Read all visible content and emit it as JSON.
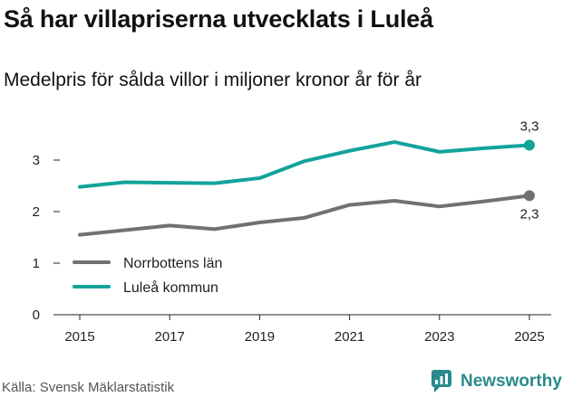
{
  "header": {
    "title": "Så har villapriserna utvecklats i Luleå",
    "subtitle": "Medelpris för sålda villor i miljoner kronor år för år"
  },
  "footer": {
    "source": "Källa: Svensk Mäklarstatistik",
    "brand": "Newsworthy"
  },
  "colors": {
    "norrbotten": "#717075",
    "lulea": "#12a39b",
    "axis": "#222222",
    "brand": "#2a8a8c"
  },
  "chart_data": {
    "type": "line",
    "title": "Så har villapriserna utvecklats i Luleå",
    "subtitle": "Medelpris för sålda villor i miljoner kronor år för år",
    "xlabel": "",
    "ylabel": "",
    "x": [
      2015,
      2016,
      2017,
      2018,
      2019,
      2020,
      2021,
      2022,
      2023,
      2024,
      2025
    ],
    "xticks": [
      2015,
      2017,
      2019,
      2021,
      2023,
      2025
    ],
    "xtick_labels": [
      "2015",
      "2017",
      "2019",
      "2021",
      "2023",
      "2025"
    ],
    "yticks": [
      0,
      1,
      2,
      3
    ],
    "ytick_labels": [
      "0",
      "1",
      "2",
      "3"
    ],
    "xlim": [
      2015,
      2025
    ],
    "ylim": [
      0,
      3.5
    ],
    "grid": false,
    "legend_position": "bottom-left",
    "series": [
      {
        "name": "Norrbottens län",
        "key": "norrbotten",
        "values": [
          1.55,
          1.64,
          1.73,
          1.66,
          1.79,
          1.88,
          2.13,
          2.21,
          2.1,
          2.2,
          2.31
        ],
        "end_label": "2,3"
      },
      {
        "name": "Luleå kommun",
        "key": "lulea",
        "values": [
          2.48,
          2.57,
          2.56,
          2.55,
          2.65,
          2.98,
          3.18,
          3.35,
          3.16,
          3.23,
          3.29
        ],
        "end_label": "3,3"
      }
    ]
  }
}
